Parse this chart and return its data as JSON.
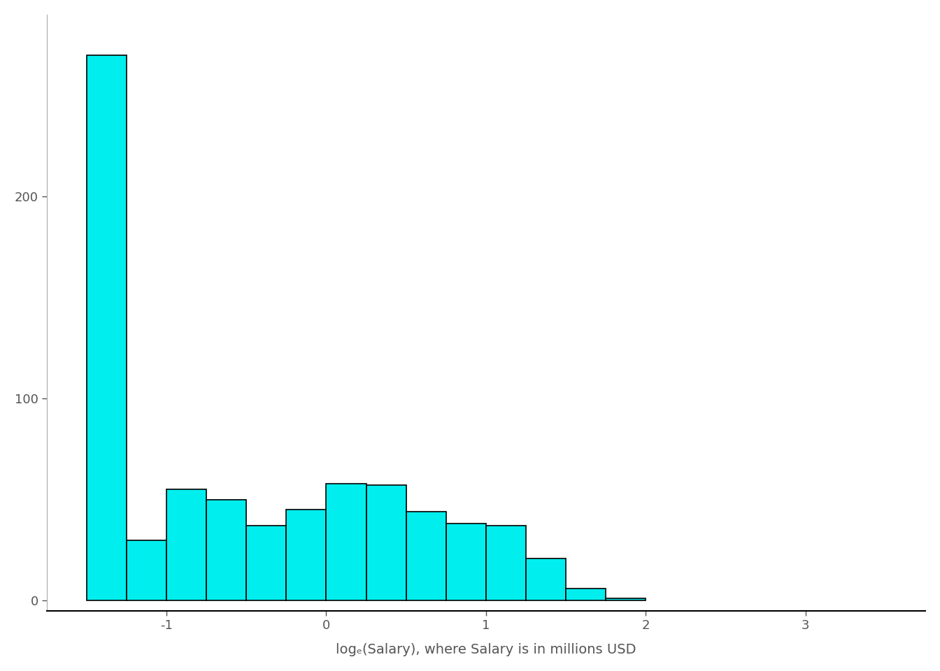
{
  "counts": [
    270,
    30,
    55,
    50,
    37,
    45,
    58,
    57,
    44,
    38,
    37,
    21,
    6,
    1
  ],
  "bin_start": -1.5,
  "bin_width": 0.25,
  "bar_color": "#00EEEE",
  "bar_edgecolor": "#000000",
  "xlabel": "logₑ(Salary), where Salary is in millions USD",
  "xlim": [
    -1.75,
    3.75
  ],
  "ylim": [
    -5,
    290
  ],
  "yticks": [
    0,
    100,
    200
  ],
  "xticks": [
    -1,
    0,
    1,
    2,
    3
  ],
  "background_color": "#ffffff",
  "font_color": "#555555",
  "xlabel_fontsize": 14,
  "tick_fontsize": 13
}
